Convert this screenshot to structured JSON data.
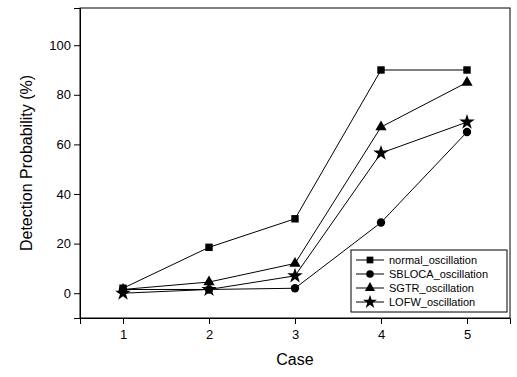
{
  "chart_data": {
    "type": "line",
    "x_label": "Case",
    "y_label": "Detection Probability (%)",
    "x": [
      1,
      2,
      3,
      4,
      5
    ],
    "xlim": [
      0.5,
      5.5
    ],
    "xticks": [
      1,
      2,
      3,
      4,
      5
    ],
    "ylim": [
      -10,
      115
    ],
    "yticks": [
      0,
      20,
      40,
      60,
      80,
      100
    ],
    "grid": false,
    "legend": "lower right",
    "series": [
      {
        "name": "normal_oscillation",
        "color": "#000000",
        "marker": "square",
        "line_style": "solid",
        "values": [
          2,
          18.5,
          30,
          90,
          90
        ]
      },
      {
        "name": "SBLOCA_oscillation",
        "color": "#000000",
        "marker": "circle",
        "line_style": "solid",
        "values": [
          1.5,
          1.5,
          2,
          28.5,
          65
        ]
      },
      {
        "name": "SGTR_oscillation",
        "color": "#000000",
        "marker": "triangle",
        "line_style": "solid",
        "values": [
          1.5,
          4.5,
          12,
          67,
          85
        ]
      },
      {
        "name": "LOFW_oscillation",
        "color": "#000000",
        "marker": "star",
        "line_style": "solid",
        "values": [
          0,
          1.5,
          7,
          56.5,
          69
        ]
      }
    ]
  }
}
